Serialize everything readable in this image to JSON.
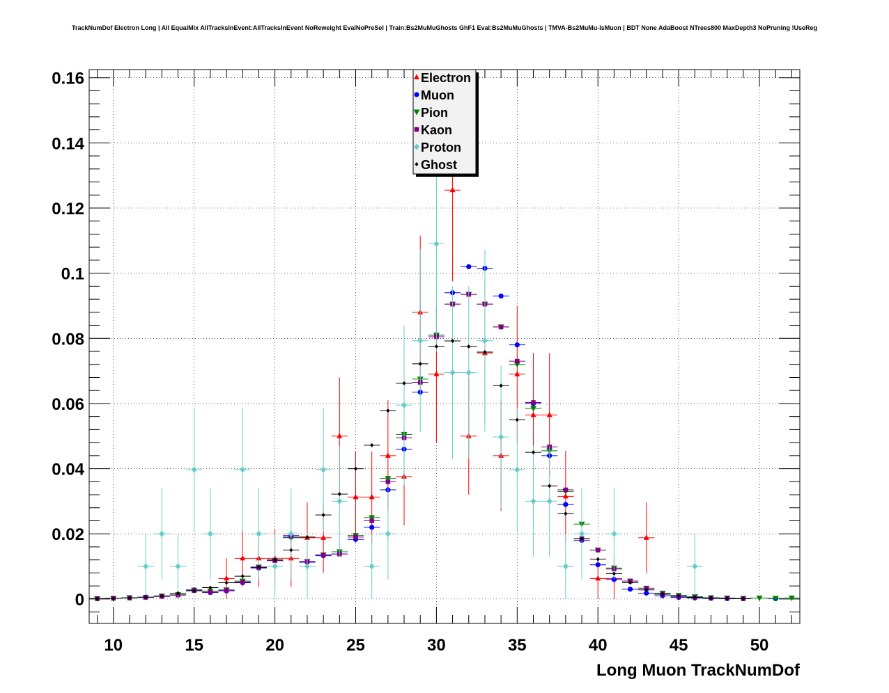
{
  "chart_data": {
    "type": "scatter",
    "title": "TrackNumDof Electron Long | All EqualMix AllTracksInEvent:AllTracksInEvent NoReweight EvalNoPreSel | Train:Bs2MuMuGhosts GhF1 Eval:Bs2MuMuGhosts | TMVA-Bs2MuMu-IsMuon | BDT None AdaBoost NTrees800 MaxDepth3 NoPruning !UseReg",
    "xlabel": "Long Muon TrackNumDof",
    "ylabel": "",
    "xlim": [
      8.5,
      52.5
    ],
    "ylim": [
      -0.0075,
      0.1625
    ],
    "x_ticks": [
      10,
      15,
      20,
      25,
      30,
      35,
      40,
      45,
      50
    ],
    "x_tick_labels": [
      "10",
      "15",
      "20",
      "25",
      "30",
      "35",
      "40",
      "45",
      "50"
    ],
    "y_ticks": [
      0,
      0.02,
      0.04,
      0.06,
      0.08,
      0.1,
      0.12,
      0.14,
      0.16
    ],
    "y_tick_labels": [
      "0",
      "0.02",
      "0.04",
      "0.06",
      "0.08",
      "0.1",
      "0.12",
      "0.14",
      "0.16"
    ],
    "grid": true,
    "legend_position": "top-center",
    "x_bin_half_width": 0.5,
    "series": [
      {
        "name": "Electron",
        "color": "#ff0000",
        "marker": "triangle-up",
        "points": [
          [
            17,
            0.0063,
            0.0063
          ],
          [
            18,
            0.0125,
            0.0088
          ],
          [
            19,
            0.0125,
            0.0088
          ],
          [
            20,
            0.0125,
            0.0088
          ],
          [
            21,
            0.0125,
            0.0088
          ],
          [
            22,
            0.0188,
            0.0108
          ],
          [
            23,
            0.0188,
            0.0108
          ],
          [
            24,
            0.05,
            0.018
          ],
          [
            25,
            0.0313,
            0.014
          ],
          [
            26,
            0.0313,
            0.014
          ],
          [
            27,
            0.044,
            0.017
          ],
          [
            28,
            0.0376,
            0.015
          ],
          [
            29,
            0.088,
            0.0235
          ],
          [
            30,
            0.069,
            0.021
          ],
          [
            31,
            0.1255,
            0.028
          ],
          [
            32,
            0.05,
            0.018
          ],
          [
            33,
            0.0755,
            0.022
          ],
          [
            34,
            0.044,
            0.017
          ],
          [
            35,
            0.069,
            0.021
          ],
          [
            36,
            0.0565,
            0.019
          ],
          [
            37,
            0.0565,
            0.019
          ],
          [
            38,
            0.0315,
            0.014
          ],
          [
            40,
            0.0063,
            0.0063
          ],
          [
            41,
            0.0063,
            0.0063
          ],
          [
            43,
            0.0188,
            0.0108
          ]
        ]
      },
      {
        "name": "Muon",
        "color": "#0000ff",
        "marker": "circle",
        "points": [
          [
            9,
            0.0001,
            0
          ],
          [
            10,
            0.0002,
            0
          ],
          [
            11,
            0.0004,
            0
          ],
          [
            12,
            0.0006,
            0
          ],
          [
            13,
            0.0008,
            0
          ],
          [
            14,
            0.0012,
            0
          ],
          [
            15,
            0.0028,
            0
          ],
          [
            16,
            0.002,
            0
          ],
          [
            17,
            0.0025,
            0
          ],
          [
            18,
            0.005,
            0
          ],
          [
            19,
            0.0095,
            0
          ],
          [
            20,
            0.0118,
            0
          ],
          [
            21,
            0.019,
            0
          ],
          [
            22,
            0.0113,
            0
          ],
          [
            23,
            0.0133,
            0
          ],
          [
            24,
            0.0138,
            0
          ],
          [
            25,
            0.0183,
            0
          ],
          [
            26,
            0.022,
            0
          ],
          [
            27,
            0.0335,
            0
          ],
          [
            28,
            0.046,
            0
          ],
          [
            29,
            0.0635,
            0
          ],
          [
            30,
            0.081,
            0
          ],
          [
            31,
            0.094,
            0
          ],
          [
            32,
            0.102,
            0
          ],
          [
            33,
            0.1015,
            0
          ],
          [
            34,
            0.093,
            0
          ],
          [
            35,
            0.078,
            0
          ],
          [
            36,
            0.06,
            0
          ],
          [
            37,
            0.044,
            0
          ],
          [
            38,
            0.029,
            0
          ],
          [
            39,
            0.018,
            0
          ],
          [
            40,
            0.0105,
            0
          ],
          [
            41,
            0.006,
            0
          ],
          [
            42,
            0.003,
            0
          ],
          [
            43,
            0.0018,
            0
          ],
          [
            44,
            0.001,
            0
          ],
          [
            45,
            0.0005,
            0
          ],
          [
            46,
            0.0003,
            0
          ],
          [
            47,
            0.0002,
            0
          ],
          [
            48,
            0.0001,
            0
          ],
          [
            49,
            0.0001,
            0
          ],
          [
            51,
            0.0001,
            0
          ]
        ]
      },
      {
        "name": "Pion",
        "color": "#008000",
        "marker": "triangle-down",
        "points": [
          [
            9,
            0.0001,
            0
          ],
          [
            10,
            0.0002,
            0
          ],
          [
            11,
            0.0004,
            0
          ],
          [
            12,
            0.0005,
            0
          ],
          [
            13,
            0.0009,
            0
          ],
          [
            14,
            0.0013,
            0
          ],
          [
            15,
            0.0027,
            0
          ],
          [
            16,
            0.0024,
            0
          ],
          [
            17,
            0.0028,
            0
          ],
          [
            18,
            0.0055,
            0
          ],
          [
            19,
            0.0098,
            0
          ],
          [
            20,
            0.0118,
            0
          ],
          [
            21,
            0.0188,
            0
          ],
          [
            22,
            0.0115,
            0
          ],
          [
            23,
            0.0135,
            0
          ],
          [
            24,
            0.0145,
            0
          ],
          [
            25,
            0.0195,
            0
          ],
          [
            26,
            0.025,
            0
          ],
          [
            27,
            0.037,
            0
          ],
          [
            28,
            0.0505,
            0
          ],
          [
            29,
            0.0675,
            0
          ],
          [
            30,
            0.081,
            0
          ],
          [
            31,
            0.0905,
            0
          ],
          [
            32,
            0.0935,
            0
          ],
          [
            33,
            0.0905,
            0
          ],
          [
            34,
            0.0835,
            0
          ],
          [
            35,
            0.072,
            0
          ],
          [
            36,
            0.0585,
            0
          ],
          [
            37,
            0.0455,
            0
          ],
          [
            38,
            0.033,
            0
          ],
          [
            39,
            0.023,
            0
          ],
          [
            40,
            0.015,
            0
          ],
          [
            41,
            0.0095,
            0
          ],
          [
            42,
            0.0055,
            0
          ],
          [
            43,
            0.0033,
            0
          ],
          [
            44,
            0.0018,
            0
          ],
          [
            45,
            0.0011,
            0
          ],
          [
            46,
            0.0007,
            0
          ],
          [
            47,
            0.0004,
            0
          ],
          [
            48,
            0.0003,
            0
          ],
          [
            49,
            0.0002,
            0
          ],
          [
            50,
            0.0003,
            0
          ],
          [
            51,
            0.0002,
            0
          ],
          [
            52,
            0.0003,
            0
          ]
        ]
      },
      {
        "name": "Kaon",
        "color": "#800080",
        "marker": "square",
        "points": [
          [
            9,
            0.0001,
            0
          ],
          [
            10,
            0.0002,
            0
          ],
          [
            11,
            0.0003,
            0
          ],
          [
            12,
            0.0005,
            0
          ],
          [
            13,
            0.0008,
            0
          ],
          [
            14,
            0.0012,
            0
          ],
          [
            15,
            0.0026,
            0
          ],
          [
            16,
            0.0021,
            0
          ],
          [
            17,
            0.0027,
            0
          ],
          [
            18,
            0.0052,
            0
          ],
          [
            19,
            0.0097,
            0
          ],
          [
            20,
            0.0118,
            0
          ],
          [
            21,
            0.0195,
            0
          ],
          [
            22,
            0.0115,
            0
          ],
          [
            23,
            0.0135,
            0
          ],
          [
            24,
            0.0138,
            0
          ],
          [
            25,
            0.019,
            0
          ],
          [
            26,
            0.024,
            0
          ],
          [
            27,
            0.036,
            0
          ],
          [
            28,
            0.0495,
            0
          ],
          [
            29,
            0.0665,
            0
          ],
          [
            30,
            0.0805,
            0
          ],
          [
            31,
            0.0905,
            0
          ],
          [
            32,
            0.0935,
            0
          ],
          [
            33,
            0.0905,
            0
          ],
          [
            34,
            0.0835,
            0
          ],
          [
            35,
            0.073,
            0
          ],
          [
            36,
            0.0603,
            0
          ],
          [
            37,
            0.0467,
            0
          ],
          [
            38,
            0.0335,
            0
          ],
          [
            39,
            0.0185,
            0
          ],
          [
            40,
            0.015,
            0
          ],
          [
            41,
            0.0092,
            0
          ],
          [
            42,
            0.0055,
            0
          ],
          [
            43,
            0.0033,
            0
          ],
          [
            44,
            0.0015,
            0
          ],
          [
            45,
            0.0008,
            0
          ],
          [
            46,
            0.0005,
            0
          ],
          [
            47,
            0.0003,
            0
          ],
          [
            48,
            0.0002,
            0
          ],
          [
            49,
            0.0001,
            0
          ]
        ]
      },
      {
        "name": "Proton",
        "color": "#66cccc",
        "marker": "diamond",
        "points": [
          [
            12,
            0.01,
            0.01
          ],
          [
            13,
            0.02,
            0.014
          ],
          [
            14,
            0.01,
            0.01
          ],
          [
            15,
            0.0397,
            0.019
          ],
          [
            16,
            0.02,
            0.014
          ],
          [
            18,
            0.0397,
            0.019
          ],
          [
            19,
            0.02,
            0.014
          ],
          [
            20,
            0.01,
            0.01
          ],
          [
            21,
            0.02,
            0.014
          ],
          [
            22,
            0.01,
            0.01
          ],
          [
            23,
            0.0397,
            0.019
          ],
          [
            24,
            0.03,
            0.017
          ],
          [
            26,
            0.01,
            0.01
          ],
          [
            27,
            0.02,
            0.014
          ],
          [
            28,
            0.0595,
            0.0245
          ],
          [
            29,
            0.0793,
            0.028
          ],
          [
            30,
            0.109,
            0.033
          ],
          [
            31,
            0.0695,
            0.0265
          ],
          [
            32,
            0.0695,
            0.0265
          ],
          [
            33,
            0.0793,
            0.028
          ],
          [
            34,
            0.0497,
            0.022
          ],
          [
            35,
            0.0397,
            0.019
          ],
          [
            36,
            0.03,
            0.017
          ],
          [
            37,
            0.03,
            0.017
          ],
          [
            38,
            0.01,
            0.01
          ],
          [
            39,
            0.02,
            0.014
          ],
          [
            41,
            0.02,
            0.014
          ],
          [
            46,
            0.01,
            0.01
          ]
        ]
      },
      {
        "name": "Ghost",
        "color": "#000000",
        "marker": "small-diamond",
        "points": [
          [
            9,
            0.0001,
            0
          ],
          [
            10,
            0.0002,
            0
          ],
          [
            11,
            0.0003,
            0
          ],
          [
            12,
            0.0005,
            0
          ],
          [
            13,
            0.0009,
            0
          ],
          [
            14,
            0.0018,
            0
          ],
          [
            15,
            0.0025,
            0
          ],
          [
            16,
            0.0035,
            0
          ],
          [
            17,
            0.005,
            0
          ],
          [
            18,
            0.007,
            0
          ],
          [
            19,
            0.0098,
            0
          ],
          [
            20,
            0.012,
            0
          ],
          [
            21,
            0.015,
            0
          ],
          [
            22,
            0.019,
            0
          ],
          [
            23,
            0.0258,
            0
          ],
          [
            24,
            0.0322,
            0
          ],
          [
            25,
            0.04,
            0
          ],
          [
            26,
            0.0472,
            0
          ],
          [
            27,
            0.0578,
            0
          ],
          [
            28,
            0.0662,
            0
          ],
          [
            29,
            0.0722,
            0
          ],
          [
            30,
            0.0775,
            0
          ],
          [
            31,
            0.0792,
            0
          ],
          [
            32,
            0.0775,
            0
          ],
          [
            33,
            0.0758,
            0
          ],
          [
            34,
            0.0655,
            0
          ],
          [
            35,
            0.055,
            0
          ],
          [
            36,
            0.045,
            0
          ],
          [
            37,
            0.0347,
            0
          ],
          [
            38,
            0.0262,
            0
          ],
          [
            39,
            0.0185,
            0
          ],
          [
            40,
            0.0122,
            0
          ],
          [
            41,
            0.0078,
            0
          ],
          [
            42,
            0.005,
            0
          ],
          [
            43,
            0.0028,
            0
          ],
          [
            44,
            0.0015,
            0
          ],
          [
            45,
            0.0009,
            0
          ],
          [
            46,
            0.0005,
            0
          ],
          [
            47,
            0.0003,
            0
          ],
          [
            48,
            0.0002,
            0
          ],
          [
            49,
            0.0001,
            0
          ]
        ]
      }
    ]
  }
}
